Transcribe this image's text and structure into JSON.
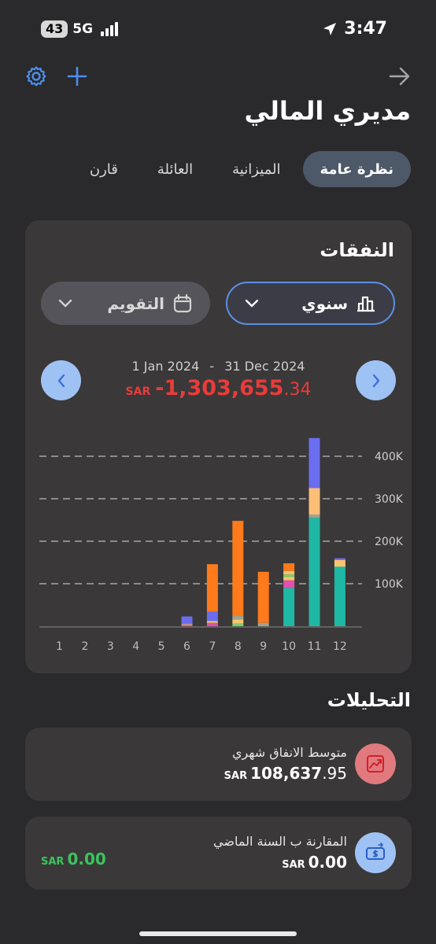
{
  "status_bar": {
    "battery": "43",
    "network": "5G",
    "time": "3:47"
  },
  "header": {
    "title": "مديري المالي"
  },
  "tabs": [
    {
      "label": "نظرة عامة",
      "active": true
    },
    {
      "label": "الميزانية",
      "active": false
    },
    {
      "label": "العائلة",
      "active": false
    },
    {
      "label": "قارن",
      "active": false
    }
  ],
  "expenses": {
    "title": "النفقات",
    "period_selector": {
      "label": "سنوي"
    },
    "calendar_selector": {
      "label": "التقويم"
    },
    "date_from": "1 Jan 2024",
    "date_separator": "-",
    "date_to": "31 Dec 2024",
    "total": {
      "currency": "SAR",
      "amount": "-1,303,655",
      "decimals": ".34"
    }
  },
  "chart_data": {
    "type": "bar",
    "stacked": true,
    "categories": [
      "1",
      "2",
      "3",
      "4",
      "5",
      "6",
      "7",
      "8",
      "9",
      "10",
      "11",
      "12"
    ],
    "y_ticks": [
      "100K",
      "200K",
      "300K",
      "400K"
    ],
    "ylim": [
      0,
      450000
    ],
    "grid": "dashed",
    "series_colors": [
      "#1fb8a4",
      "#9fa38f",
      "#e24fb0",
      "#f2c86c",
      "#7fcf6a",
      "#ff7a1a",
      "#ffbe76",
      "#6b6df0"
    ],
    "stacks": [
      [],
      [],
      [],
      [],
      [],
      [
        {
          "c": 2,
          "v": 3000
        },
        {
          "c": 3,
          "v": 2000
        },
        {
          "c": 7,
          "v": 18000
        }
      ],
      [
        {
          "c": 2,
          "v": 8000
        },
        {
          "c": 3,
          "v": 4000
        },
        {
          "c": 7,
          "v": 22000
        },
        {
          "c": 5,
          "v": 112000
        }
      ],
      [
        {
          "c": 4,
          "v": 6000
        },
        {
          "c": 3,
          "v": 10000
        },
        {
          "c": 1,
          "v": 8000
        },
        {
          "c": 5,
          "v": 224000
        }
      ],
      [
        {
          "c": 1,
          "v": 8000
        },
        {
          "c": 5,
          "v": 120000
        }
      ],
      [
        {
          "c": 0,
          "v": 90000
        },
        {
          "c": 2,
          "v": 18000
        },
        {
          "c": 3,
          "v": 8000
        },
        {
          "c": 4,
          "v": 6000
        },
        {
          "c": 6,
          "v": 8000
        },
        {
          "c": 5,
          "v": 18000
        }
      ],
      [
        {
          "c": 0,
          "v": 255000
        },
        {
          "c": 1,
          "v": 8000
        },
        {
          "c": 6,
          "v": 62000
        },
        {
          "c": 7,
          "v": 118000
        }
      ],
      [
        {
          "c": 0,
          "v": 140000
        },
        {
          "c": 3,
          "v": 10000
        },
        {
          "c": 6,
          "v": 6000
        },
        {
          "c": 7,
          "v": 4000
        }
      ]
    ]
  },
  "analytics": {
    "title": "التحليلات",
    "items": [
      {
        "label": "متوسط الانفاق شهري",
        "currency": "SAR",
        "amount": "108,637",
        "decimals": ".95"
      },
      {
        "label": "المقارنة ب السنة الماضي",
        "currency": "SAR",
        "amount": "0.00",
        "decimals": "",
        "compare_currency": "SAR",
        "compare_amount": "0.00"
      }
    ]
  }
}
